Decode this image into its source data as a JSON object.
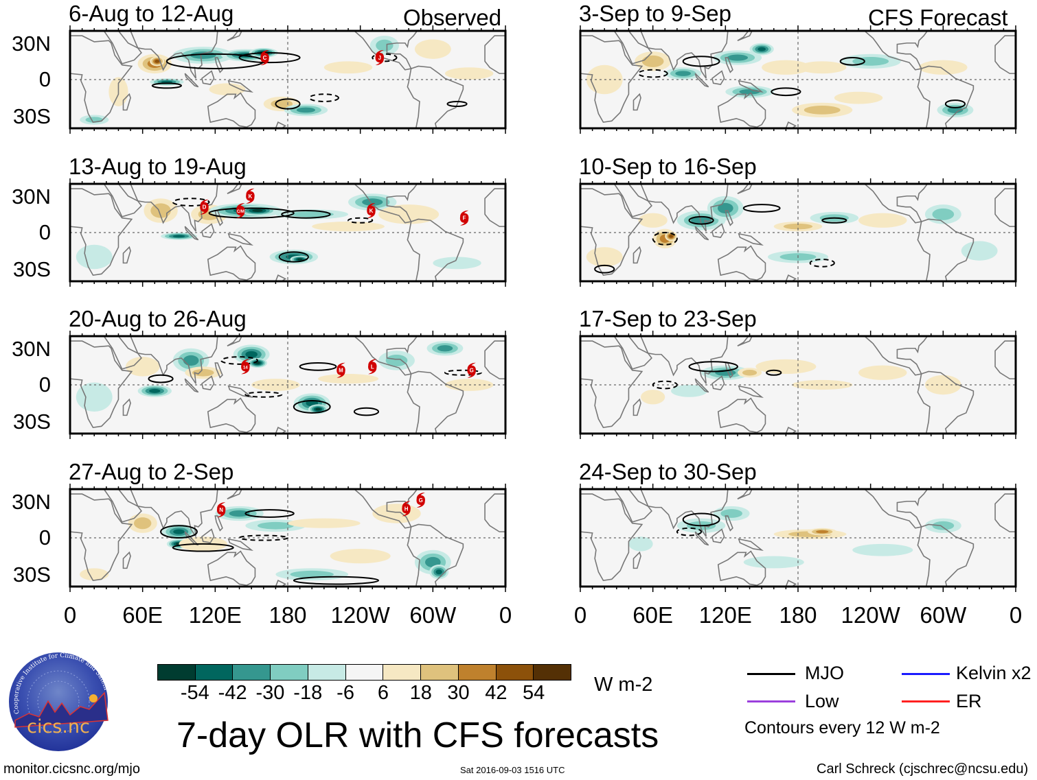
{
  "header": {
    "observed_label": "Observed",
    "forecast_label": "CFS Forecast"
  },
  "panels": [
    {
      "title": "6-Aug to 12-Aug",
      "type": "observed",
      "storms": [
        {
          "id": "C",
          "lon": 161,
          "lat": 18
        },
        {
          "id": "J",
          "lon": 256,
          "lat": 18
        }
      ]
    },
    {
      "title": "13-Aug to 19-Aug",
      "type": "observed",
      "storms": [
        {
          "id": "D",
          "lon": 111,
          "lat": 21
        },
        {
          "id": "C/M",
          "lon": 141,
          "lat": 18
        },
        {
          "id": "K",
          "lon": 149,
          "lat": 30
        },
        {
          "id": "K",
          "lon": 249,
          "lat": 18
        },
        {
          "id": "F",
          "lon": 326,
          "lat": 12
        }
      ]
    },
    {
      "title": "20-Aug to 26-Aug",
      "type": "observed",
      "storms": [
        {
          "id": "14",
          "lon": 145,
          "lat": 15
        },
        {
          "id": "M",
          "lon": 224,
          "lat": 12
        },
        {
          "id": "L",
          "lon": 250,
          "lat": 15
        },
        {
          "id": "G",
          "lon": 332,
          "lat": 12
        }
      ]
    },
    {
      "title": "27-Aug to 2-Sep",
      "type": "observed",
      "storms": [
        {
          "id": "N",
          "lon": 125,
          "lat": 23
        },
        {
          "id": "H",
          "lon": 278,
          "lat": 24
        },
        {
          "id": "G",
          "lon": 290,
          "lat": 31
        }
      ]
    },
    {
      "title": "3-Sep to 9-Sep",
      "type": "forecast",
      "storms": []
    },
    {
      "title": "10-Sep to 16-Sep",
      "type": "forecast",
      "storms": []
    },
    {
      "title": "17-Sep to 23-Sep",
      "type": "forecast",
      "storms": []
    },
    {
      "title": "24-Sep to 30-Sep",
      "type": "forecast",
      "storms": []
    }
  ],
  "axes": {
    "lat_labels": [
      "30N",
      "0",
      "30S"
    ],
    "lon_labels": [
      "0",
      "60E",
      "120E",
      "180",
      "120W",
      "60W",
      "0"
    ],
    "lon_range": [
      0,
      360
    ],
    "lat_range": [
      -40,
      40
    ]
  },
  "colorbar": {
    "colors": [
      "#003c30",
      "#01665e",
      "#35978f",
      "#80cdc1",
      "#c7eae5",
      "#f5f5f5",
      "#f6e8c3",
      "#dfc27d",
      "#bf812d",
      "#8c510a",
      "#543005"
    ],
    "labels": [
      "-54",
      "-42",
      "-30",
      "-18",
      "-6",
      "6",
      "18",
      "30",
      "42",
      "54"
    ],
    "units": "W m-2"
  },
  "legend": {
    "items": [
      {
        "label": "MJO",
        "color": "#000000"
      },
      {
        "label": "Kelvin x2",
        "color": "#1a1aff"
      },
      {
        "label": "Low",
        "color": "#9b3fdc"
      },
      {
        "label": "ER",
        "color": "#ff2020"
      }
    ],
    "contour_note": "Contours every 12 W m-2"
  },
  "title": "7-day OLR with CFS forecasts",
  "footer": {
    "url": "monitor.cicsnc.org/mjo",
    "timestamp": "Sat 2016-09-03 1516 UTC",
    "author": "Carl Schreck (cjschrec@ncsu.edu)"
  },
  "logo": {
    "text": "cics.nc",
    "ring_text": "Cooperative Institute for Climate and Satellites"
  }
}
